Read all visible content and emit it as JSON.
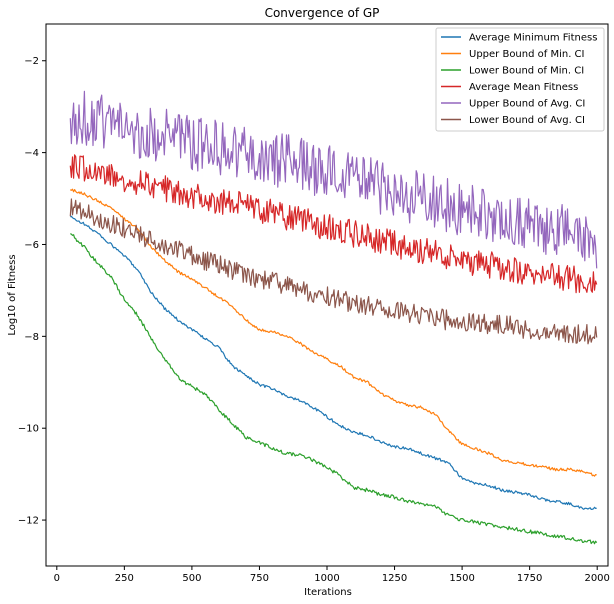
{
  "chart_data": {
    "type": "line",
    "title": "Convergence of GP",
    "xlabel": "Iterations",
    "ylabel": "Log10 of Fitness",
    "xlim": [
      -40,
      2040
    ],
    "ylim": [
      -13.0,
      -1.2
    ],
    "xticks": [
      0,
      250,
      500,
      750,
      1000,
      1250,
      1500,
      1750,
      2000
    ],
    "yticks": [
      -12,
      -10,
      -8,
      -6,
      -4,
      -2
    ],
    "xtick_labels": [
      "0",
      "250",
      "500",
      "750",
      "1000",
      "1250",
      "1500",
      "1750",
      "2000"
    ],
    "ytick_labels": [
      "−12",
      "−10",
      "−8",
      "−6",
      "−4",
      "−2"
    ],
    "legend_position": "upper right",
    "grid": false,
    "series": [
      {
        "name": "Average Minimum Fitness",
        "color": "#1f77b4",
        "noise": 0.03,
        "points": [
          [
            50,
            -5.4
          ],
          [
            100,
            -5.55
          ],
          [
            150,
            -5.75
          ],
          [
            200,
            -6.0
          ],
          [
            250,
            -6.25
          ],
          [
            300,
            -6.55
          ],
          [
            350,
            -7.05
          ],
          [
            400,
            -7.4
          ],
          [
            450,
            -7.65
          ],
          [
            500,
            -7.85
          ],
          [
            550,
            -8.05
          ],
          [
            600,
            -8.25
          ],
          [
            650,
            -8.65
          ],
          [
            700,
            -8.85
          ],
          [
            750,
            -9.05
          ],
          [
            800,
            -9.15
          ],
          [
            850,
            -9.3
          ],
          [
            900,
            -9.4
          ],
          [
            950,
            -9.55
          ],
          [
            1000,
            -9.75
          ],
          [
            1050,
            -9.95
          ],
          [
            1100,
            -10.1
          ],
          [
            1150,
            -10.15
          ],
          [
            1200,
            -10.3
          ],
          [
            1250,
            -10.4
          ],
          [
            1300,
            -10.45
          ],
          [
            1350,
            -10.55
          ],
          [
            1400,
            -10.65
          ],
          [
            1450,
            -10.75
          ],
          [
            1500,
            -11.1
          ],
          [
            1550,
            -11.2
          ],
          [
            1600,
            -11.25
          ],
          [
            1650,
            -11.35
          ],
          [
            1700,
            -11.4
          ],
          [
            1750,
            -11.45
          ],
          [
            1800,
            -11.55
          ],
          [
            1850,
            -11.6
          ],
          [
            1900,
            -11.65
          ],
          [
            1950,
            -11.75
          ],
          [
            2000,
            -11.75
          ]
        ]
      },
      {
        "name": "Upper Bound of Min. CI",
        "color": "#ff7f0e",
        "noise": 0.03,
        "points": [
          [
            50,
            -4.8
          ],
          [
            100,
            -4.9
          ],
          [
            150,
            -5.05
          ],
          [
            200,
            -5.2
          ],
          [
            250,
            -5.45
          ],
          [
            300,
            -5.65
          ],
          [
            350,
            -6.05
          ],
          [
            400,
            -6.35
          ],
          [
            450,
            -6.6
          ],
          [
            500,
            -6.75
          ],
          [
            550,
            -6.95
          ],
          [
            600,
            -7.15
          ],
          [
            650,
            -7.35
          ],
          [
            700,
            -7.65
          ],
          [
            750,
            -7.85
          ],
          [
            800,
            -7.9
          ],
          [
            850,
            -8.0
          ],
          [
            900,
            -8.15
          ],
          [
            950,
            -8.35
          ],
          [
            1000,
            -8.5
          ],
          [
            1050,
            -8.65
          ],
          [
            1100,
            -8.9
          ],
          [
            1150,
            -9.0
          ],
          [
            1200,
            -9.25
          ],
          [
            1250,
            -9.4
          ],
          [
            1300,
            -9.5
          ],
          [
            1350,
            -9.55
          ],
          [
            1400,
            -9.7
          ],
          [
            1450,
            -10.05
          ],
          [
            1500,
            -10.35
          ],
          [
            1550,
            -10.45
          ],
          [
            1600,
            -10.55
          ],
          [
            1650,
            -10.7
          ],
          [
            1700,
            -10.75
          ],
          [
            1750,
            -10.8
          ],
          [
            1800,
            -10.85
          ],
          [
            1850,
            -10.9
          ],
          [
            1900,
            -10.9
          ],
          [
            1950,
            -10.95
          ],
          [
            2000,
            -11.05
          ]
        ]
      },
      {
        "name": "Lower Bound of Min. CI",
        "color": "#2ca02c",
        "noise": 0.04,
        "points": [
          [
            50,
            -5.75
          ],
          [
            100,
            -6.05
          ],
          [
            150,
            -6.4
          ],
          [
            200,
            -6.7
          ],
          [
            250,
            -7.2
          ],
          [
            300,
            -7.55
          ],
          [
            350,
            -8.05
          ],
          [
            400,
            -8.5
          ],
          [
            450,
            -8.9
          ],
          [
            500,
            -9.1
          ],
          [
            550,
            -9.25
          ],
          [
            600,
            -9.6
          ],
          [
            650,
            -9.9
          ],
          [
            700,
            -10.2
          ],
          [
            750,
            -10.3
          ],
          [
            800,
            -10.45
          ],
          [
            850,
            -10.55
          ],
          [
            900,
            -10.6
          ],
          [
            950,
            -10.7
          ],
          [
            1000,
            -10.85
          ],
          [
            1050,
            -11.05
          ],
          [
            1100,
            -11.3
          ],
          [
            1150,
            -11.35
          ],
          [
            1200,
            -11.45
          ],
          [
            1250,
            -11.5
          ],
          [
            1300,
            -11.6
          ],
          [
            1350,
            -11.65
          ],
          [
            1400,
            -11.7
          ],
          [
            1450,
            -11.9
          ],
          [
            1500,
            -12.0
          ],
          [
            1550,
            -12.05
          ],
          [
            1600,
            -12.1
          ],
          [
            1650,
            -12.15
          ],
          [
            1700,
            -12.2
          ],
          [
            1750,
            -12.25
          ],
          [
            1800,
            -12.3
          ],
          [
            1850,
            -12.35
          ],
          [
            1900,
            -12.4
          ],
          [
            1950,
            -12.45
          ],
          [
            2000,
            -12.5
          ]
        ]
      },
      {
        "name": "Average Mean Fitness",
        "color": "#d62728",
        "noise": 0.3,
        "points": [
          [
            50,
            -4.3
          ],
          [
            150,
            -4.4
          ],
          [
            250,
            -4.55
          ],
          [
            350,
            -4.7
          ],
          [
            450,
            -4.85
          ],
          [
            550,
            -5.0
          ],
          [
            650,
            -5.1
          ],
          [
            750,
            -5.25
          ],
          [
            850,
            -5.4
          ],
          [
            950,
            -5.55
          ],
          [
            1050,
            -5.7
          ],
          [
            1150,
            -5.85
          ],
          [
            1250,
            -6.0
          ],
          [
            1350,
            -6.15
          ],
          [
            1450,
            -6.25
          ],
          [
            1550,
            -6.4
          ],
          [
            1650,
            -6.5
          ],
          [
            1750,
            -6.6
          ],
          [
            1850,
            -6.7
          ],
          [
            1950,
            -6.8
          ],
          [
            2000,
            -6.85
          ]
        ]
      },
      {
        "name": "Upper Bound of Avg. CI",
        "color": "#9467bd",
        "noise": 0.6,
        "points": [
          [
            50,
            -3.2
          ],
          [
            150,
            -3.3
          ],
          [
            250,
            -3.45
          ],
          [
            350,
            -3.6
          ],
          [
            450,
            -3.7
          ],
          [
            550,
            -3.85
          ],
          [
            650,
            -3.95
          ],
          [
            750,
            -4.1
          ],
          [
            850,
            -4.2
          ],
          [
            950,
            -4.35
          ],
          [
            1050,
            -4.5
          ],
          [
            1150,
            -4.65
          ],
          [
            1250,
            -4.85
          ],
          [
            1350,
            -5.0
          ],
          [
            1450,
            -5.15
          ],
          [
            1550,
            -5.3
          ],
          [
            1650,
            -5.45
          ],
          [
            1750,
            -5.55
          ],
          [
            1850,
            -5.7
          ],
          [
            1950,
            -5.85
          ],
          [
            2000,
            -5.95
          ]
        ]
      },
      {
        "name": "Lower Bound of Avg. CI",
        "color": "#8c564b",
        "noise": 0.22,
        "points": [
          [
            50,
            -5.2
          ],
          [
            150,
            -5.4
          ],
          [
            250,
            -5.65
          ],
          [
            350,
            -5.9
          ],
          [
            450,
            -6.1
          ],
          [
            550,
            -6.35
          ],
          [
            650,
            -6.55
          ],
          [
            750,
            -6.75
          ],
          [
            850,
            -6.9
          ],
          [
            950,
            -7.05
          ],
          [
            1050,
            -7.2
          ],
          [
            1150,
            -7.35
          ],
          [
            1250,
            -7.45
          ],
          [
            1350,
            -7.55
          ],
          [
            1450,
            -7.65
          ],
          [
            1550,
            -7.7
          ],
          [
            1650,
            -7.75
          ],
          [
            1750,
            -7.85
          ],
          [
            1850,
            -7.9
          ],
          [
            1950,
            -7.95
          ],
          [
            2000,
            -7.95
          ]
        ]
      }
    ]
  }
}
